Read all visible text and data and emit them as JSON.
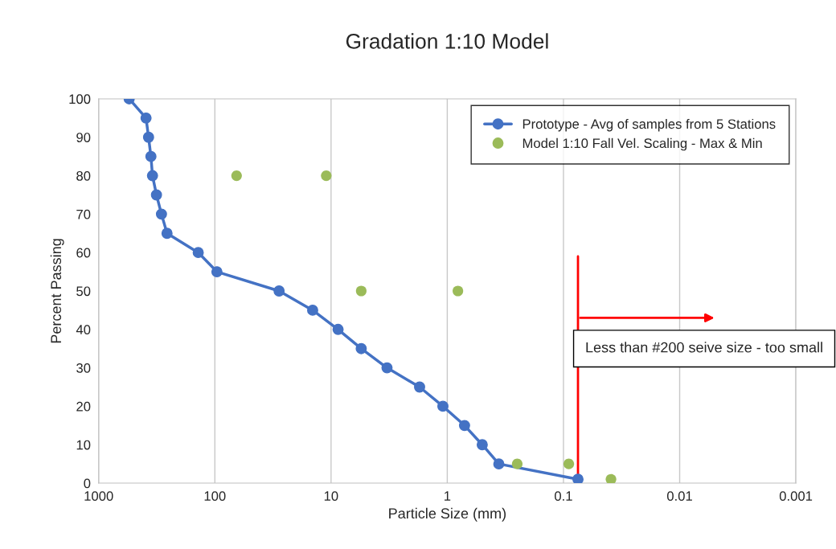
{
  "chart_data": {
    "type": "line",
    "title": "Gradation 1:10 Model",
    "xlabel": "Particle Size (mm)",
    "ylabel": "Percent Passing",
    "log": "x",
    "xlim": [
      1000,
      0.001
    ],
    "xticks": [
      1000,
      100,
      10,
      1,
      0.1,
      0.01,
      0.001
    ],
    "ylim": [
      0,
      100
    ],
    "yticks": [
      0,
      10,
      20,
      30,
      40,
      50,
      60,
      70,
      80,
      90,
      100
    ],
    "grid": "x",
    "legend": "top right",
    "marker": "circle",
    "line_style": "solid",
    "series": [
      {
        "name": "Prototype - Avg of samples from 5 Stations",
        "color": "#4472c4",
        "x": [
          546,
          391,
          372,
          355,
          344,
          318,
          288,
          258,
          139,
          96,
          28,
          14.4,
          8.7,
          5.5,
          3.3,
          1.73,
          1.09,
          0.71,
          0.5,
          0.36,
          0.075
        ],
        "values": [
          100,
          95,
          90,
          85,
          80,
          75,
          70,
          65,
          60,
          55,
          50,
          45,
          40,
          35,
          30,
          25,
          20,
          15,
          10,
          5,
          1
        ]
      },
      {
        "name": "Model 1:10 Fall Vel. Scaling - Max & Min",
        "type": "scatter",
        "color": "#9bbb59",
        "x": [
          65,
          11,
          5.5,
          0.81,
          0.25,
          0.09,
          0.039
        ],
        "values": [
          80,
          80,
          50,
          50,
          5,
          5,
          1
        ]
      }
    ],
    "ref_lines": [
      {
        "axis": "x",
        "value": 0.075,
        "label": "Less than #200 seive size - too small",
        "color": "#ff0000"
      }
    ]
  }
}
